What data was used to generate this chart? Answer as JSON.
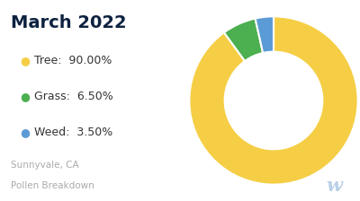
{
  "title": "March 2022",
  "subtitle_line1": "Sunnyvale, CA",
  "subtitle_line2": "Pollen Breakdown",
  "categories": [
    "Tree",
    "Grass",
    "Weed"
  ],
  "values": [
    90.0,
    6.5,
    3.5
  ],
  "colors": [
    "#F5CE45",
    "#4CAF50",
    "#5B9BD5"
  ],
  "legend_labels": [
    "Tree:  90.00%",
    "Grass:  6.50%",
    "Weed:  3.50%"
  ],
  "background_color": "#ffffff",
  "title_color": "#0d2240",
  "subtitle_color": "#aaaaaa",
  "legend_text_color": "#333333"
}
